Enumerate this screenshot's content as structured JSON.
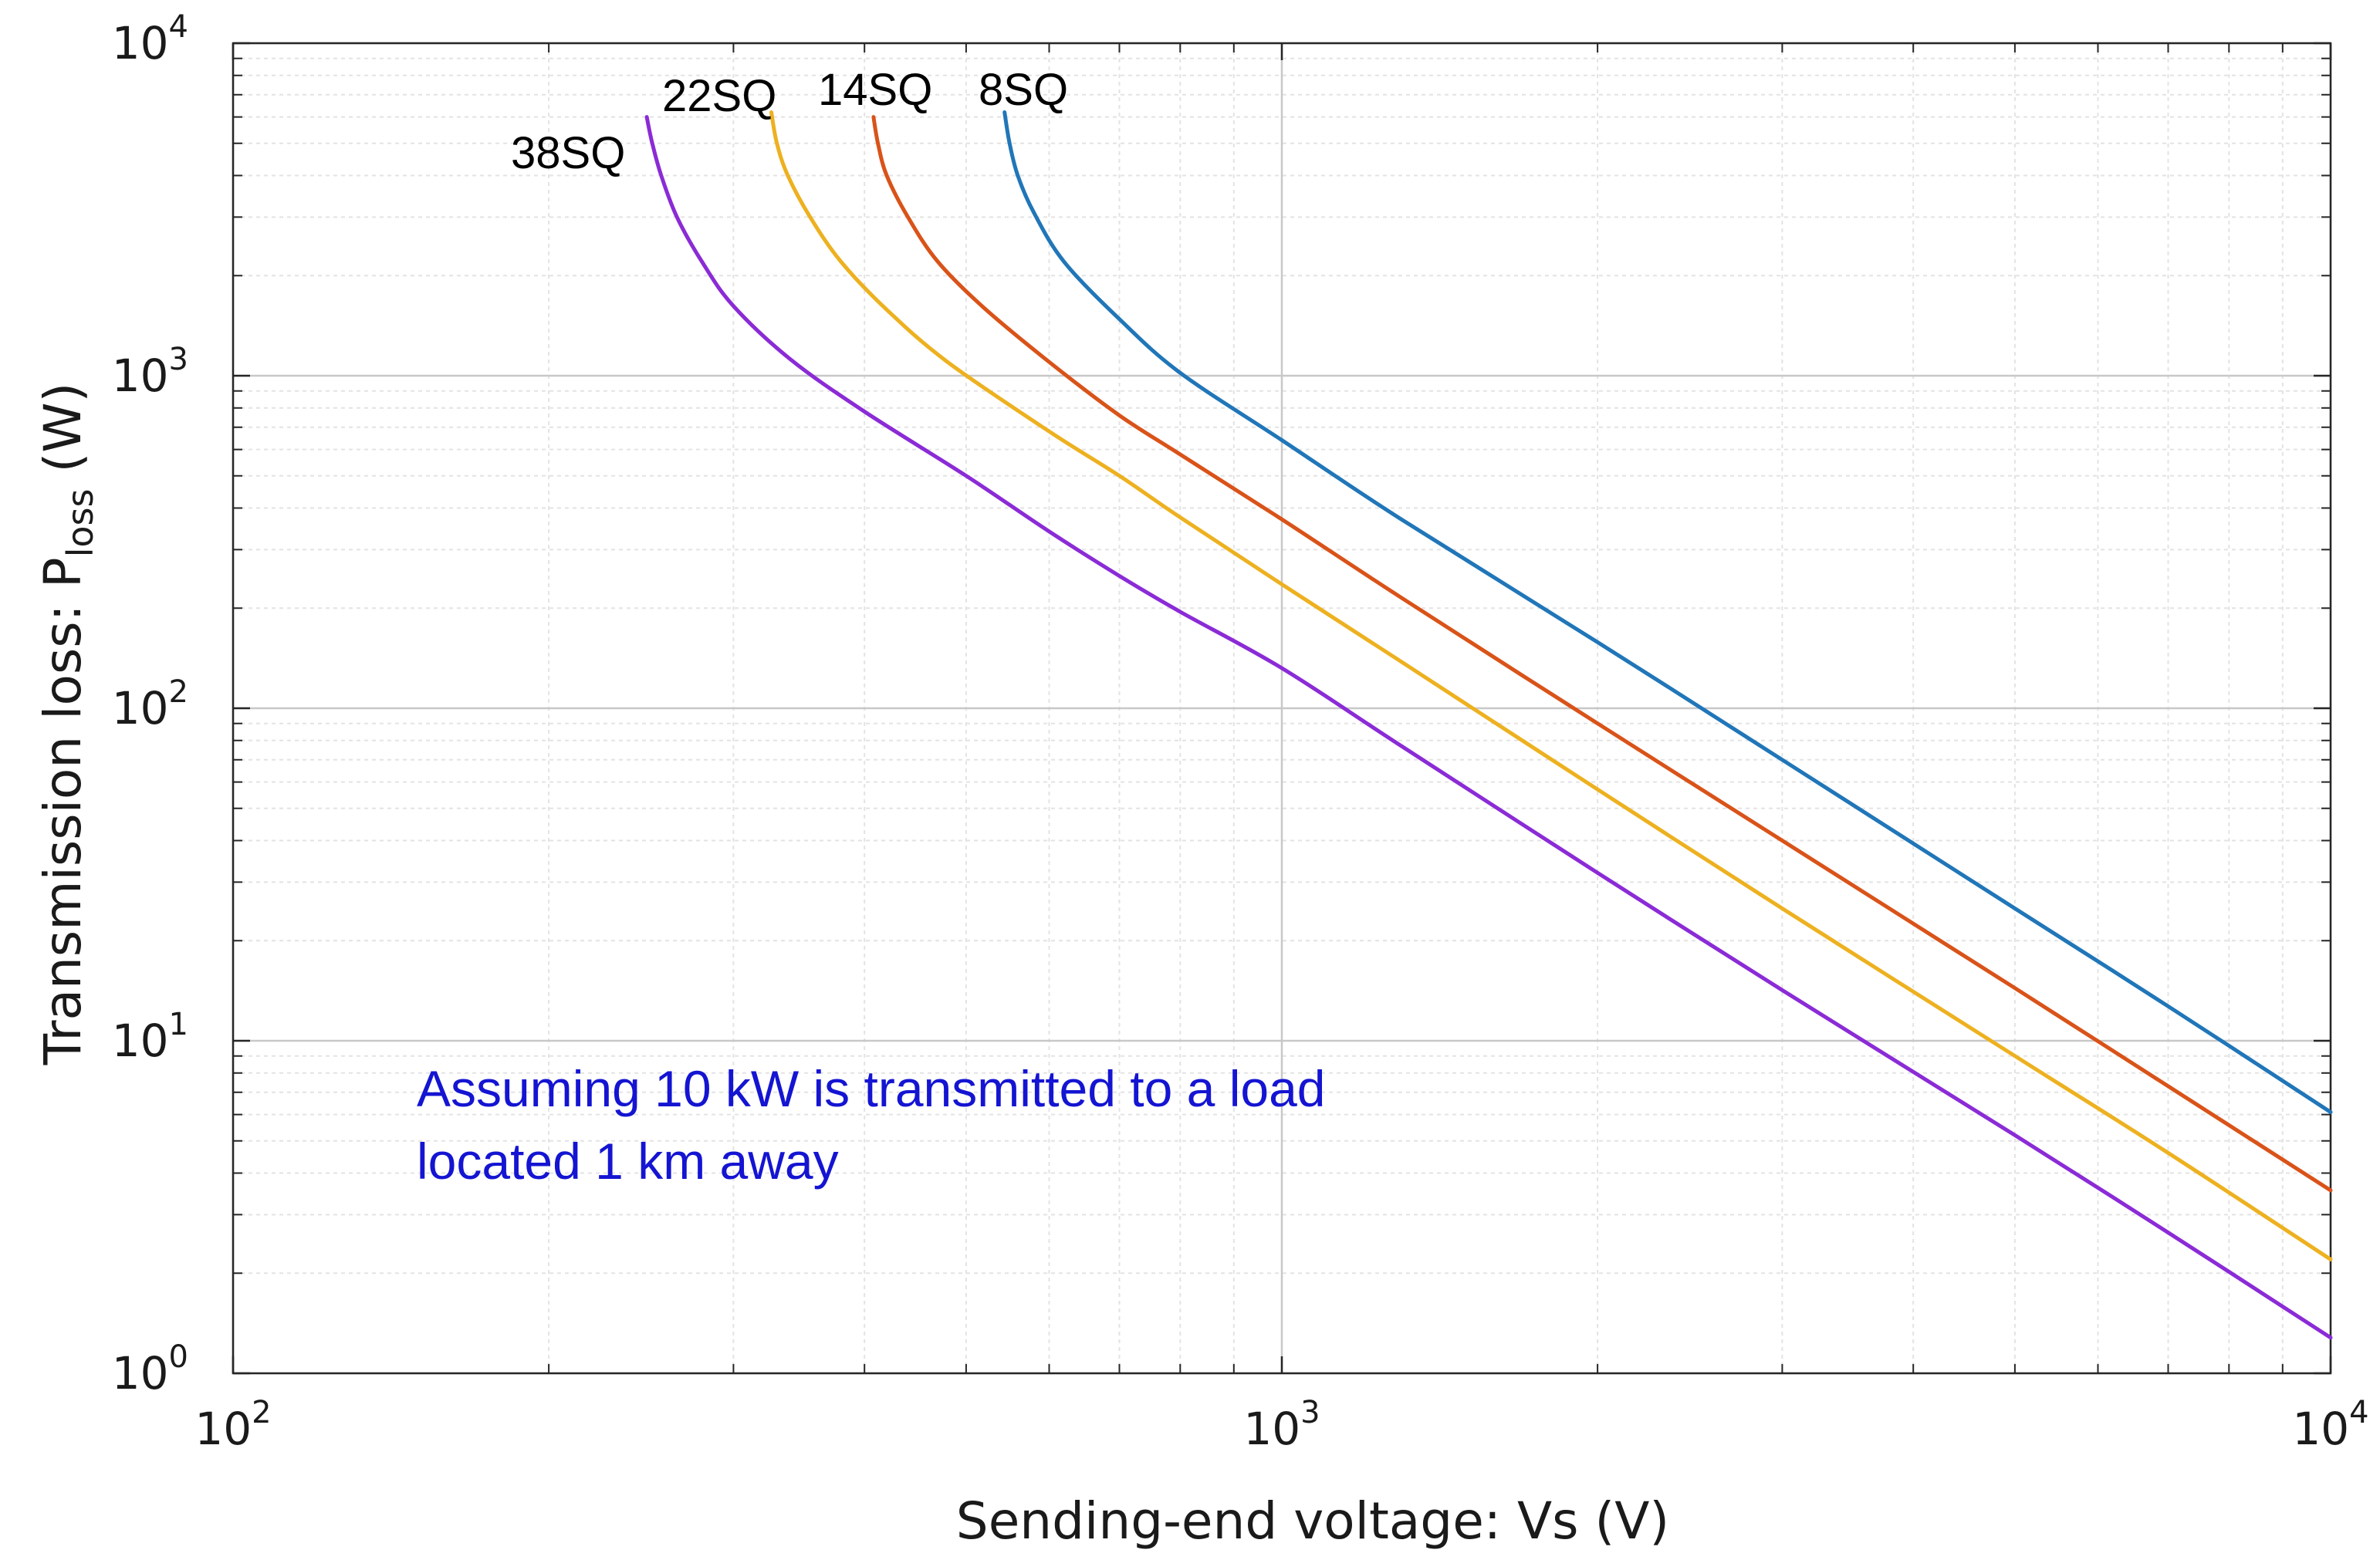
{
  "chart_data": {
    "type": "line",
    "xscale": "log",
    "yscale": "log",
    "xlim": [
      100,
      10000
    ],
    "ylim": [
      1,
      10000
    ],
    "grid": true,
    "xlabel": "Sending-end voltage: Vs (V)",
    "ylabel_main": "Transmission loss: P",
    "ylabel_sub": "loss",
    "ylabel_unit": " (W)",
    "x_ticks": [
      {
        "value": 100,
        "base": "10",
        "exp": "2"
      },
      {
        "value": 1000,
        "base": "10",
        "exp": "3"
      },
      {
        "value": 10000,
        "base": "10",
        "exp": "4"
      }
    ],
    "y_ticks": [
      {
        "value": 1,
        "base": "10",
        "exp": "0"
      },
      {
        "value": 10,
        "base": "10",
        "exp": "1"
      },
      {
        "value": 100,
        "base": "10",
        "exp": "2"
      },
      {
        "value": 1000,
        "base": "10",
        "exp": "3"
      },
      {
        "value": 10000,
        "base": "10",
        "exp": "4"
      }
    ],
    "annotation_lines": [
      "Assuming 10 kW is transmitted to a load",
      "located 1 km away"
    ],
    "series": [
      {
        "name": "8SQ",
        "color": "#2076b8",
        "points": [
          [
            544,
            6200
          ],
          [
            550,
            5000
          ],
          [
            560,
            4000
          ],
          [
            580,
            3100
          ],
          [
            620,
            2200
          ],
          [
            700,
            1480
          ],
          [
            800,
            1020
          ],
          [
            1000,
            640
          ],
          [
            1300,
            370
          ],
          [
            2000,
            158
          ],
          [
            3000,
            70
          ],
          [
            5000,
            25
          ],
          [
            7000,
            12.7
          ],
          [
            10000,
            6.1
          ]
        ]
      },
      {
        "name": "14SQ",
        "color": "#d95319",
        "points": [
          [
            408,
            6000
          ],
          [
            412,
            5000
          ],
          [
            420,
            4000
          ],
          [
            440,
            3000
          ],
          [
            470,
            2200
          ],
          [
            520,
            1600
          ],
          [
            600,
            1100
          ],
          [
            700,
            760
          ],
          [
            800,
            580
          ],
          [
            1000,
            370
          ],
          [
            1300,
            215
          ],
          [
            2000,
            90
          ],
          [
            3000,
            40
          ],
          [
            5000,
            14.4
          ],
          [
            7000,
            7.3
          ],
          [
            10000,
            3.55
          ]
        ]
      },
      {
        "name": "22SQ",
        "color": "#edb120",
        "points": [
          [
            326,
            6200
          ],
          [
            330,
            5000
          ],
          [
            338,
            4000
          ],
          [
            355,
            3000
          ],
          [
            380,
            2200
          ],
          [
            420,
            1580
          ],
          [
            480,
            1100
          ],
          [
            600,
            680
          ],
          [
            700,
            500
          ],
          [
            800,
            375
          ],
          [
            1000,
            236
          ],
          [
            1300,
            138
          ],
          [
            2000,
            57
          ],
          [
            3000,
            25
          ],
          [
            5000,
            9
          ],
          [
            7000,
            4.6
          ],
          [
            10000,
            2.2
          ]
        ]
      },
      {
        "name": "38SQ",
        "color": "#8b2bd6",
        "points": [
          [
            248,
            6000
          ],
          [
            251,
            5000
          ],
          [
            256,
            4000
          ],
          [
            265,
            3000
          ],
          [
            280,
            2200
          ],
          [
            300,
            1620
          ],
          [
            340,
            1120
          ],
          [
            400,
            780
          ],
          [
            500,
            500
          ],
          [
            600,
            340
          ],
          [
            700,
            250
          ],
          [
            800,
            195
          ],
          [
            1000,
            132
          ],
          [
            1300,
            77
          ],
          [
            2000,
            32
          ],
          [
            3000,
            14.2
          ],
          [
            5000,
            5.2
          ],
          [
            7000,
            2.65
          ],
          [
            10000,
            1.28
          ]
        ]
      }
    ],
    "series_labels": [
      {
        "name": "38SQ"
      },
      {
        "name": "22SQ"
      },
      {
        "name": "14SQ"
      },
      {
        "name": "8SQ"
      }
    ]
  }
}
